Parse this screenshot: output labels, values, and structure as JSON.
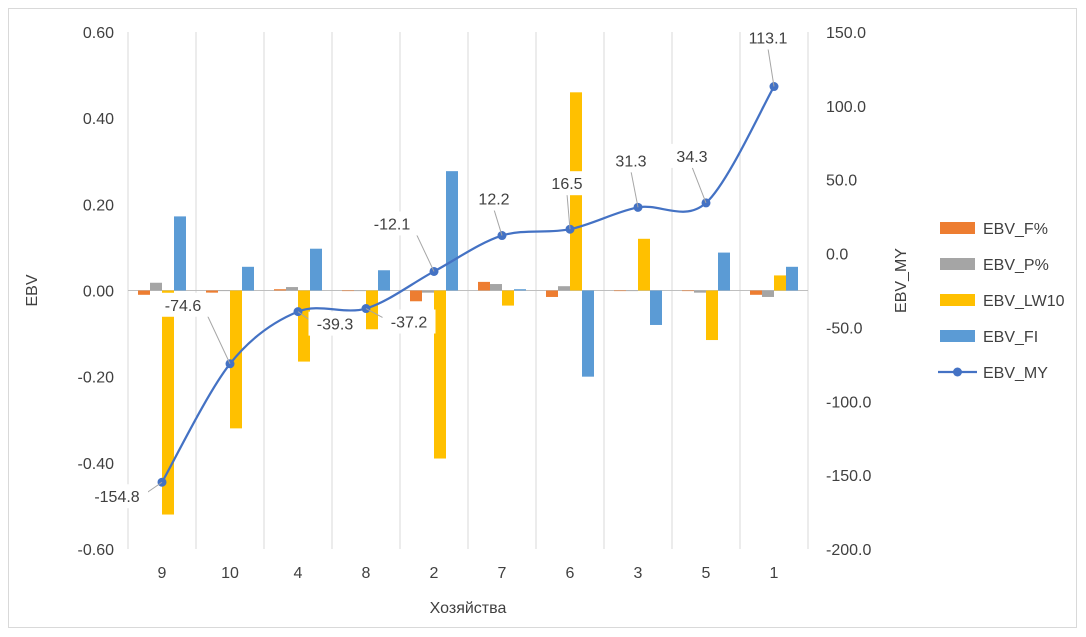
{
  "chart_data": {
    "type": "bar",
    "categories": [
      "9",
      "10",
      "4",
      "8",
      "2",
      "7",
      "6",
      "3",
      "5",
      "1"
    ],
    "xlabel": "Хозяйства",
    "ylabel": "EBV",
    "y2label": "EBV_MY",
    "ylim": [
      -0.6,
      0.6
    ],
    "y2lim": [
      -200,
      150
    ],
    "yticks": [
      "0.60",
      "0.40",
      "0.20",
      "0.00",
      "-0.20",
      "-0.40",
      "-0.60"
    ],
    "y2ticks": [
      "150.0",
      "100.0",
      "50.0",
      "0.0",
      "-50.0",
      "-100.0",
      "-150.0",
      "-200.0"
    ],
    "gridlines": "vertical",
    "legend_position": "right",
    "series": [
      {
        "name": "EBV_F%",
        "type": "bar",
        "color": "#ED7D31",
        "values": [
          -0.01,
          -0.005,
          0.003,
          0.0,
          -0.025,
          0.02,
          -0.015,
          0.0,
          0.0,
          -0.01
        ]
      },
      {
        "name": "EBV_P%",
        "type": "bar",
        "color": "#A5A5A5",
        "values": [
          0.018,
          0.0,
          0.008,
          0.0,
          -0.005,
          0.015,
          0.01,
          0.0,
          -0.005,
          -0.015
        ]
      },
      {
        "name": "EBV_LW10",
        "type": "bar",
        "color": "#FFC000",
        "values": [
          -0.52,
          -0.32,
          -0.165,
          -0.09,
          -0.39,
          -0.035,
          0.46,
          0.12,
          -0.115,
          0.035
        ]
      },
      {
        "name": "EBV_FI",
        "type": "bar",
        "color": "#5B9BD5",
        "values": [
          0.172,
          0.055,
          0.097,
          0.047,
          0.277,
          0.003,
          -0.2,
          -0.08,
          0.088,
          0.055
        ]
      },
      {
        "name": "EBV_MY",
        "type": "line",
        "axis": "secondary",
        "color": "#4472C4",
        "values": [
          -154.8,
          -74.6,
          -39.3,
          -37.2,
          -12.1,
          12.2,
          16.5,
          31.3,
          34.3,
          113.1
        ],
        "labels": [
          "-154.8",
          "-74.6",
          "-39.3",
          "-37.2",
          "-12.1",
          "12.2",
          "16.5",
          "31.3",
          "34.3",
          "113.1"
        ]
      }
    ]
  }
}
